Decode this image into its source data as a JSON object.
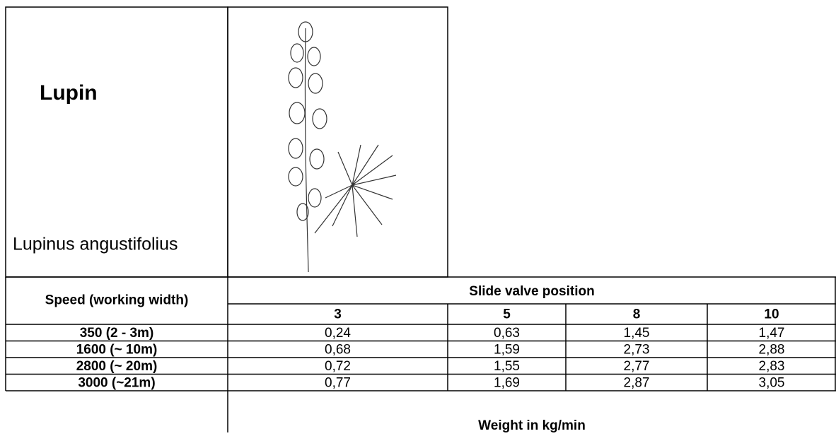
{
  "header": {
    "title": "Lupin",
    "subtitle": "Lupinus angustifolius"
  },
  "table": {
    "row_header": "Speed (working width)",
    "group_header": "Slide valve position",
    "columns": [
      "3",
      "5",
      "8",
      "10"
    ],
    "rows": [
      [
        "350 (2 - 3m)",
        "0,24",
        "0,63",
        "1,45",
        "1,47"
      ],
      [
        "1600 (~ 10m)",
        "0,68",
        "1,59",
        "2,73",
        "2,88"
      ],
      [
        "2800 (~ 20m)",
        "0,72",
        "1,55",
        "2,77",
        "2,83"
      ],
      [
        "3000 (~21m)",
        "0,77",
        "1,69",
        "2,87",
        "3,05"
      ]
    ],
    "footer": "Weight in kg/min"
  }
}
